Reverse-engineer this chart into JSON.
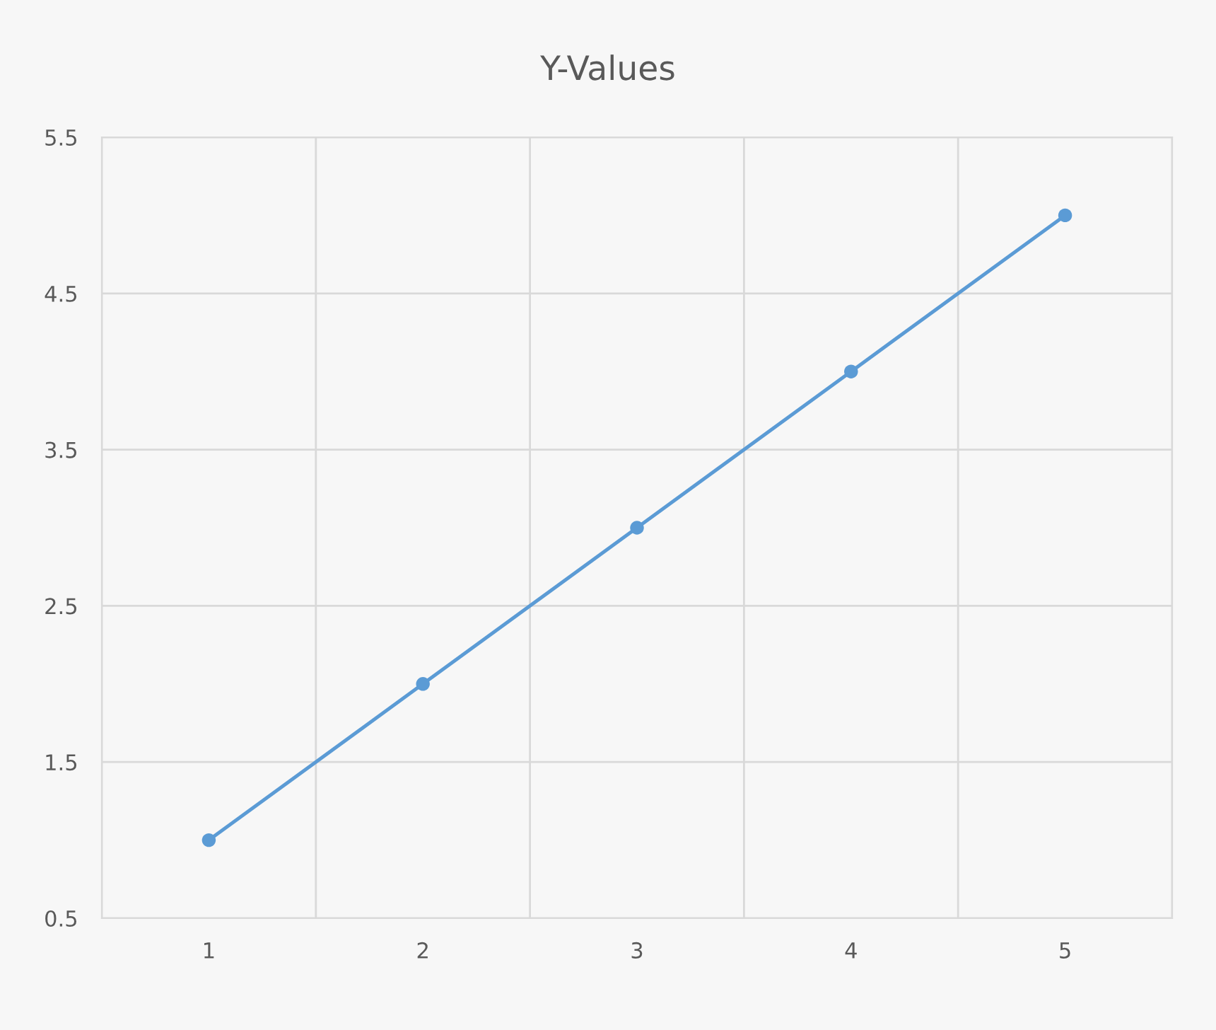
{
  "chart_data": {
    "type": "line",
    "title": "Y-Values",
    "categories": [
      "1",
      "2",
      "3",
      "4",
      "5"
    ],
    "series": [
      {
        "color": "#5b9bd5",
        "values": [
          1,
          2,
          3,
          4,
          5
        ]
      }
    ],
    "ylim": [
      0.5,
      5.5
    ],
    "yticks": [
      0.5,
      1.5,
      2.5,
      3.5,
      4.5,
      5.5
    ],
    "grid": true,
    "marker": "circle",
    "line_style": "solid",
    "legend": false
  }
}
